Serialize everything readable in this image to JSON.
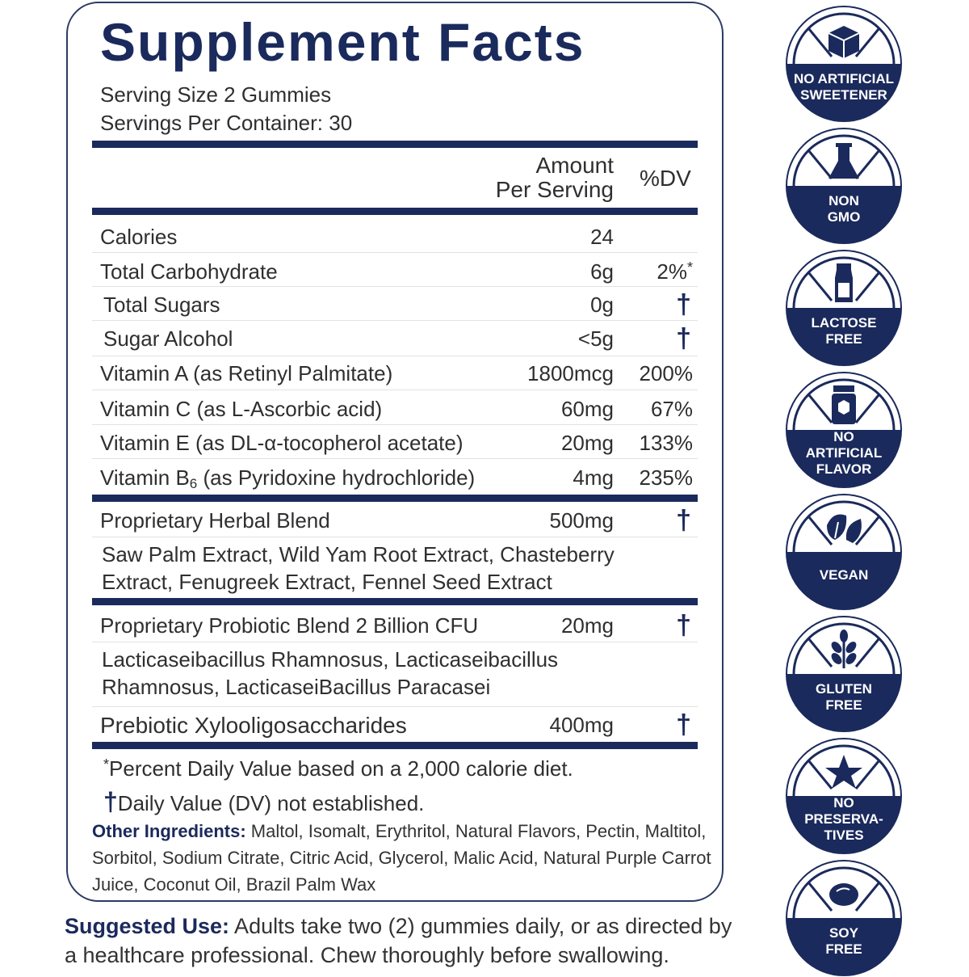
{
  "title": "Supplement Facts",
  "serving_size": "Serving Size 2 Gummies",
  "servings_per_container": "Servings Per Container: 30",
  "header": {
    "amount_line1": "Amount",
    "amount_line2": "Per Serving",
    "dv": "%DV"
  },
  "nutrients": [
    {
      "name": "Calories",
      "amount": "24",
      "dv": ""
    },
    {
      "name": "Total Carbohydrate",
      "amount": "6g",
      "dv": "2%",
      "dv_mark": "*"
    },
    {
      "name": "Total Sugars",
      "amount": "0g",
      "dv": "†"
    },
    {
      "name": "Sugar Alcohol",
      "amount": "<5g",
      "dv": "†"
    },
    {
      "name": "Vitamin A (as Retinyl Palmitate)",
      "amount": "1800mcg",
      "dv": "200%"
    },
    {
      "name": "Vitamin C (as L-Ascorbic acid)",
      "amount": "60mg",
      "dv": "67%"
    },
    {
      "name": "Vitamin E (as DL-α-tocopherol acetate)",
      "amount": "20mg",
      "dv": "133%"
    },
    {
      "name_prefix": "Vitamin B",
      "name_sub": "6",
      "name_suffix": " (as Pyridoxine hydrochloride)",
      "amount": "4mg",
      "dv": "235%"
    }
  ],
  "herbal_blend": {
    "name": "Proprietary Herbal Blend",
    "amount": "500mg",
    "dv": "†",
    "ingredients": "Saw Palm Extract, Wild Yam Root Extract, Chasteberry Extract, Fenugreek Extract, Fennel Seed Extract"
  },
  "probiotic_blend": {
    "name": "Proprietary Probiotic Blend 2 Billion CFU",
    "amount": "20mg",
    "dv": "†",
    "ingredients": "Lacticaseibacillus Rhamnosus, Lacticaseibacillus Rhamnosus, LacticaseiBacillus Paracasei"
  },
  "prebiotic": {
    "name": "Prebiotic Xylooligosaccharides",
    "amount": "400mg",
    "dv": "†"
  },
  "footnotes": {
    "percent_mark": "*",
    "percent": "Percent Daily Value based on a 2,000 calorie diet.",
    "dagger_mark": "†",
    "dagger": "Daily Value (DV) not established."
  },
  "other_ingredients": {
    "label": "Other Ingredients:",
    "text": " Maltol, Isomalt, Erythritol, Natural Flavors, Pectin, Maltitol, Sorbitol, Sodium Citrate, Citric Acid, Glycerol, Malic Acid, Natural Purple Carrot Juice,  Coconut Oil, Brazil Palm Wax"
  },
  "suggested_use": {
    "label": "Suggested Use:",
    "text": " Adults take two (2) gummies daily, or as directed by a healthcare professional. Chew thoroughly before swallowing."
  },
  "badges": [
    {
      "icon": "cube-icon",
      "line1": "NO ARTIFICIAL",
      "line2": "SWEETENER"
    },
    {
      "icon": "flask-icon",
      "line1": "NON",
      "line2": "GMO"
    },
    {
      "icon": "milk-bottle-icon",
      "line1": "LACTOSE",
      "line2": "FREE"
    },
    {
      "icon": "jar-icon",
      "line1": "NO",
      "line2": "ARTIFICIAL",
      "line3": "FLAVOR"
    },
    {
      "icon": "leaf-icon",
      "line1": "VEGAN"
    },
    {
      "icon": "wheat-icon",
      "line1": "GLUTEN",
      "line2": "FREE"
    },
    {
      "icon": "star-icon",
      "line1": "NO",
      "line2": "PRESERVA-",
      "line3": "TIVES"
    },
    {
      "icon": "soybean-icon",
      "line1": "SOY",
      "line2": "FREE"
    }
  ],
  "colors": {
    "navy": "#1b2a5c",
    "text": "#2f2f2f"
  }
}
